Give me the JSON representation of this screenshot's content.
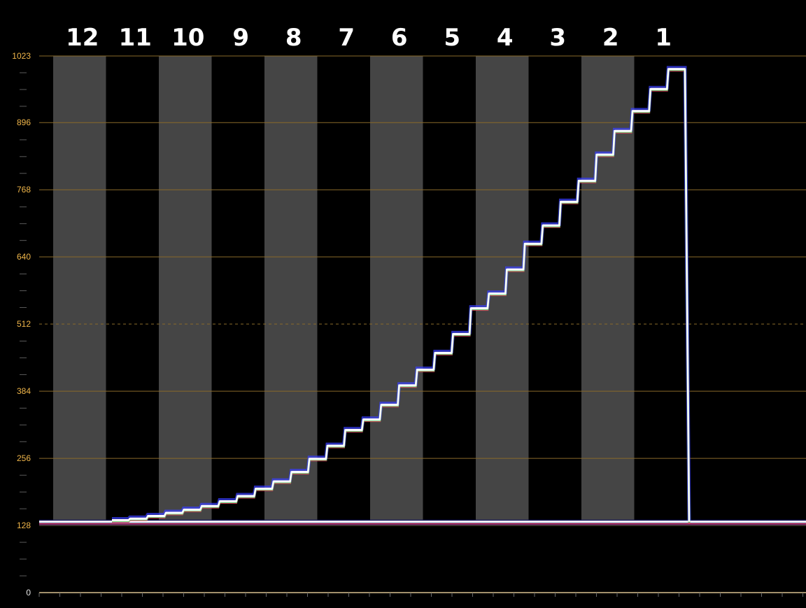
{
  "colors": {
    "background": "#000000",
    "zone_fill": "#454545",
    "grid_line": "#8a6a2a",
    "axis_line": "#d8c090",
    "tick_label": "#f0b64a",
    "trace_white": "#ffffff",
    "trace_red": "#ff4060",
    "trace_green": "#3cff80",
    "trace_blue": "#3a40ff"
  },
  "chart_data": {
    "type": "line",
    "title": "",
    "xlabel": "",
    "ylabel": "",
    "ylim": [
      0,
      1023
    ],
    "yticks": [
      "1023",
      "896",
      "768",
      "640",
      "512",
      "384",
      "256",
      "128",
      "0"
    ],
    "ytick_values": [
      1023,
      896,
      768,
      640,
      512,
      384,
      256,
      128,
      0
    ],
    "dashed_gridline": 512,
    "grid": true,
    "stop_labels": [
      "12",
      "11",
      "10",
      "9",
      "8",
      "7",
      "6",
      "5",
      "4",
      "3",
      "2",
      "1"
    ],
    "noise_floor": 135,
    "series": [
      {
        "values": [
          138,
          141,
          146,
          152,
          158,
          165,
          174,
          184,
          198,
          212,
          230,
          255,
          280,
          310,
          330,
          358,
          395,
          425,
          457,
          493,
          542,
          570,
          616,
          665,
          700,
          745,
          785,
          835,
          880,
          918,
          960,
          998
        ]
      }
    ]
  }
}
